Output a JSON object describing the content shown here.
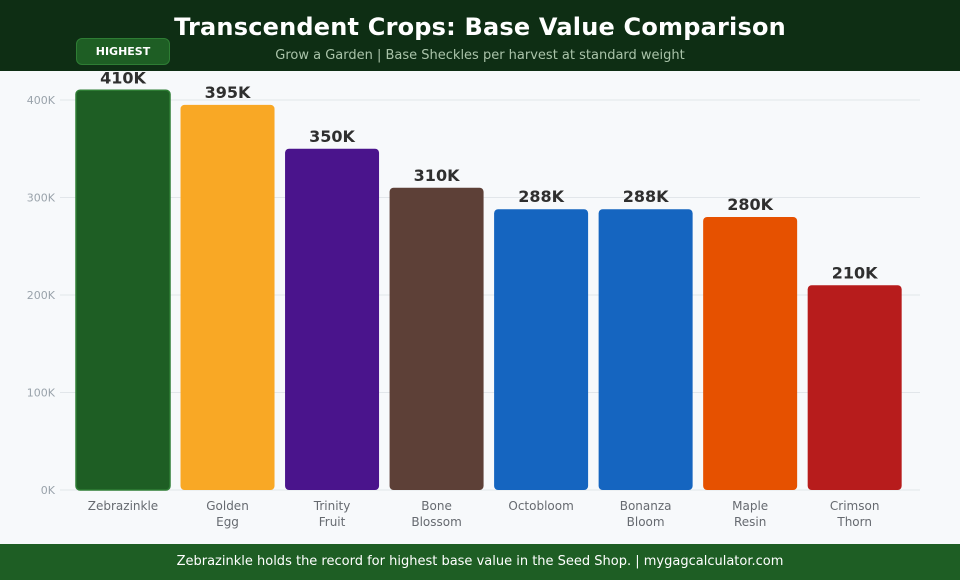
{
  "header": {
    "title": "Transcendent Crops: Base Value Comparison",
    "subtitle": "Grow a Garden | Base Sheckles per harvest at standard weight"
  },
  "badge": {
    "label": "HIGHEST"
  },
  "footer": {
    "text": "Zebrazinkle holds the record for highest base value in the Seed Shop. | mygagcalculator.com"
  },
  "chart_data": {
    "type": "bar",
    "categories": [
      "Zebrazinkle",
      "Golden Egg",
      "Trinity Fruit",
      "Bone Blossom",
      "Octobloom",
      "Bonanza Bloom",
      "Maple Resin",
      "Crimson Thorn"
    ],
    "category_lines": [
      [
        "Zebrazinkle"
      ],
      [
        "Golden",
        "Egg"
      ],
      [
        "Trinity",
        "Fruit"
      ],
      [
        "Bone",
        "Blossom"
      ],
      [
        "Octobloom"
      ],
      [
        "Bonanza",
        "Bloom"
      ],
      [
        "Maple",
        "Resin"
      ],
      [
        "Crimson",
        "Thorn"
      ]
    ],
    "values": [
      410000,
      395000,
      350000,
      310000,
      288000,
      288000,
      280000,
      210000
    ],
    "value_labels": [
      "410K",
      "395K",
      "350K",
      "310K",
      "288K",
      "288K",
      "280K",
      "210K"
    ],
    "colors": [
      "#1e5e24",
      "#f9a825",
      "#4a148c",
      "#5d4037",
      "#1565c0",
      "#1565c0",
      "#e65100",
      "#b71c1c"
    ],
    "highlight_index": 0,
    "highlight_color": "#1e5e24",
    "yticks": [
      0,
      100000,
      200000,
      300000,
      400000
    ],
    "ytick_labels": [
      "0K",
      "100K",
      "200K",
      "300K",
      "400K"
    ],
    "ylim": [
      0,
      400000
    ],
    "grid": true
  }
}
